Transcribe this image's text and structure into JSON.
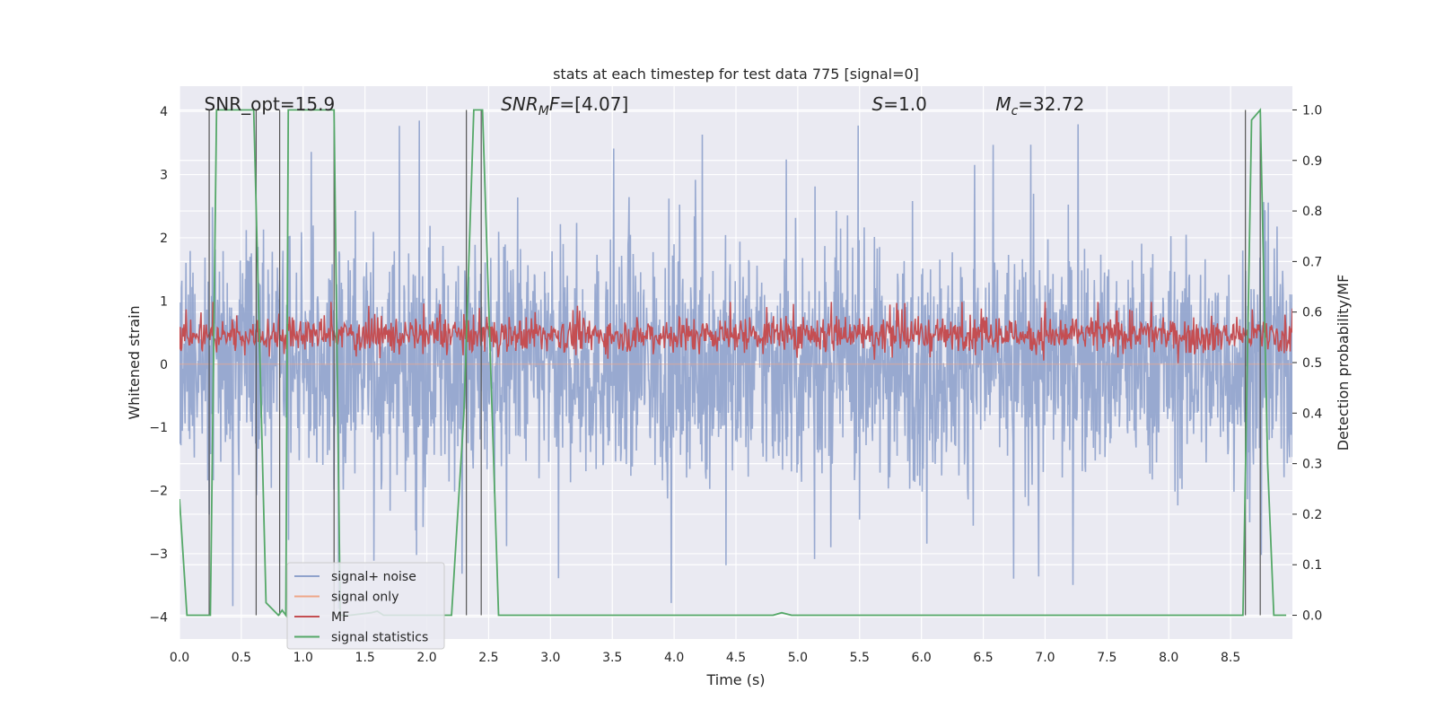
{
  "chart_data": {
    "type": "line",
    "title": "stats at each timestep for test data 775 [signal=0]",
    "xlabel": "Time (s)",
    "ylabel": "Whitened strain",
    "y2label": "Detection probability/MF",
    "xlim": [
      0.0,
      9.0
    ],
    "ylim": [
      -4.35,
      4.4
    ],
    "y2lim": [
      -0.047,
      1.047
    ],
    "grid": true,
    "x_ticks": [
      "0.0",
      "0.5",
      "1.0",
      "1.5",
      "2.0",
      "2.5",
      "3.0",
      "3.5",
      "4.0",
      "4.5",
      "5.0",
      "5.5",
      "6.0",
      "6.5",
      "7.0",
      "7.5",
      "8.0",
      "8.5"
    ],
    "y_ticks": [
      "4",
      "3",
      "2",
      "1",
      "0",
      "−1",
      "−2",
      "−3",
      "−4"
    ],
    "y2_ticks": [
      "1.0",
      "0.9",
      "0.8",
      "0.7",
      "0.6",
      "0.5",
      "0.4",
      "0.3",
      "0.2",
      "0.1",
      "0.0"
    ],
    "annotations": [
      {
        "pre": "SNR_opt=15.9",
        "sub": "",
        "post": "",
        "x": 0.2
      },
      {
        "pre": "SNR",
        "sub": "M",
        "post": "F=[4.07]",
        "x": 2.6
      },
      {
        "pre": "S",
        "sub": "",
        "post": "=1.0",
        "x": 5.6
      },
      {
        "pre": "M",
        "sub": "c",
        "post": "=32.72",
        "x": 6.6
      }
    ],
    "legend_placement": "lower-left",
    "series": [
      {
        "name": "signal+ noise",
        "color": "#8fa2cc",
        "kind": "noise",
        "amplitude_y": [
          -3.9,
          4.0
        ],
        "typical_range_y": [
          -1.6,
          1.6
        ]
      },
      {
        "name": "signal only",
        "color": "#eea689",
        "kind": "flat",
        "value_y": 0.0
      },
      {
        "name": "MF",
        "color": "#c44e52",
        "kind": "noise",
        "axis": "y2",
        "typical_range_y2": [
          0.52,
          0.59
        ],
        "max_y2": 0.62
      },
      {
        "name": "signal statistics",
        "color": "#55a868",
        "kind": "line",
        "axis": "y2",
        "x": [
          0.0,
          0.06,
          0.25,
          0.3,
          0.6,
          0.7,
          0.8,
          0.83,
          0.86,
          0.88,
          1.25,
          1.3,
          1.38,
          1.55,
          1.6,
          1.65,
          2.2,
          2.3,
          2.38,
          2.45,
          2.58,
          4.8,
          4.87,
          4.95,
          8.6,
          8.67,
          8.74,
          8.8,
          8.85,
          8.95
        ],
        "y": [
          0.23,
          0.0,
          0.0,
          1.0,
          1.0,
          0.025,
          0.0,
          0.01,
          0.0,
          1.0,
          1.0,
          0.0,
          0.0,
          0.005,
          0.008,
          0.0,
          0.0,
          0.4,
          1.0,
          1.0,
          0.0,
          0.0,
          0.005,
          0.0,
          0.0,
          0.98,
          1.0,
          0.3,
          0.0,
          0.0
        ]
      }
    ],
    "vertical_markers_x": [
      0.24,
      0.62,
      0.81,
      1.25,
      2.32,
      2.44,
      8.62,
      8.74
    ]
  }
}
